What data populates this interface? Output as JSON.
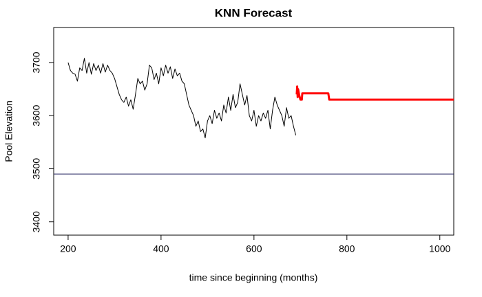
{
  "chart_data": {
    "type": "line",
    "title": "KNN Forecast",
    "x_label": "time since beginning (months)",
    "y_label": "Pool Elevation",
    "xlim": [
      169,
      1030
    ],
    "ylim": [
      3375,
      3766
    ],
    "xticks": [
      200,
      400,
      600,
      800,
      1000
    ],
    "yticks": [
      3400,
      3500,
      3600,
      3700
    ],
    "hline": 3490,
    "hline_color": "#1f1f5c",
    "series": [
      {
        "color": "#000000",
        "width": 1,
        "x": [
          200,
          205,
          210,
          215,
          220,
          225,
          230,
          235,
          240,
          245,
          250,
          255,
          260,
          265,
          270,
          275,
          280,
          285,
          290,
          295,
          300,
          305,
          310,
          315,
          320,
          325,
          330,
          335,
          340,
          345,
          350,
          355,
          360,
          365,
          370,
          375,
          380,
          385,
          390,
          395,
          400,
          405,
          410,
          415,
          420,
          425,
          430,
          435,
          440,
          445,
          450,
          455,
          460,
          465,
          470,
          475,
          480,
          485,
          490,
          495,
          500,
          505,
          510,
          515,
          520,
          525,
          530,
          535,
          540,
          545,
          550,
          555,
          560,
          565,
          570,
          575,
          580,
          585,
          590,
          595,
          600,
          605,
          610,
          615,
          620,
          625,
          630,
          635,
          640,
          645,
          650,
          655,
          660,
          665,
          670,
          675,
          680,
          685,
          690
        ],
        "values": [
          3700,
          3685,
          3680,
          3678,
          3665,
          3690,
          3685,
          3708,
          3680,
          3700,
          3678,
          3698,
          3685,
          3695,
          3680,
          3698,
          3682,
          3695,
          3685,
          3680,
          3670,
          3655,
          3640,
          3630,
          3625,
          3635,
          3618,
          3630,
          3612,
          3640,
          3670,
          3660,
          3665,
          3648,
          3660,
          3695,
          3690,
          3668,
          3680,
          3660,
          3690,
          3675,
          3695,
          3680,
          3692,
          3670,
          3688,
          3675,
          3680,
          3665,
          3660,
          3640,
          3620,
          3610,
          3600,
          3580,
          3590,
          3570,
          3575,
          3558,
          3590,
          3600,
          3585,
          3610,
          3595,
          3605,
          3590,
          3620,
          3605,
          3635,
          3610,
          3640,
          3615,
          3625,
          3660,
          3640,
          3620,
          3638,
          3600,
          3590,
          3610,
          3580,
          3600,
          3590,
          3605,
          3595,
          3610,
          3575,
          3610,
          3635,
          3620,
          3610,
          3600,
          3580,
          3615,
          3595,
          3600,
          3580,
          3563
        ]
      },
      {
        "color": "#ff0000",
        "width": 3,
        "x": [
          692,
          693,
          694,
          695,
          697,
          700,
          703,
          704,
          760,
          762,
          1030
        ],
        "values": [
          3640,
          3655,
          3635,
          3650,
          3640,
          3630,
          3630,
          3642,
          3642,
          3630,
          3630
        ]
      }
    ]
  }
}
